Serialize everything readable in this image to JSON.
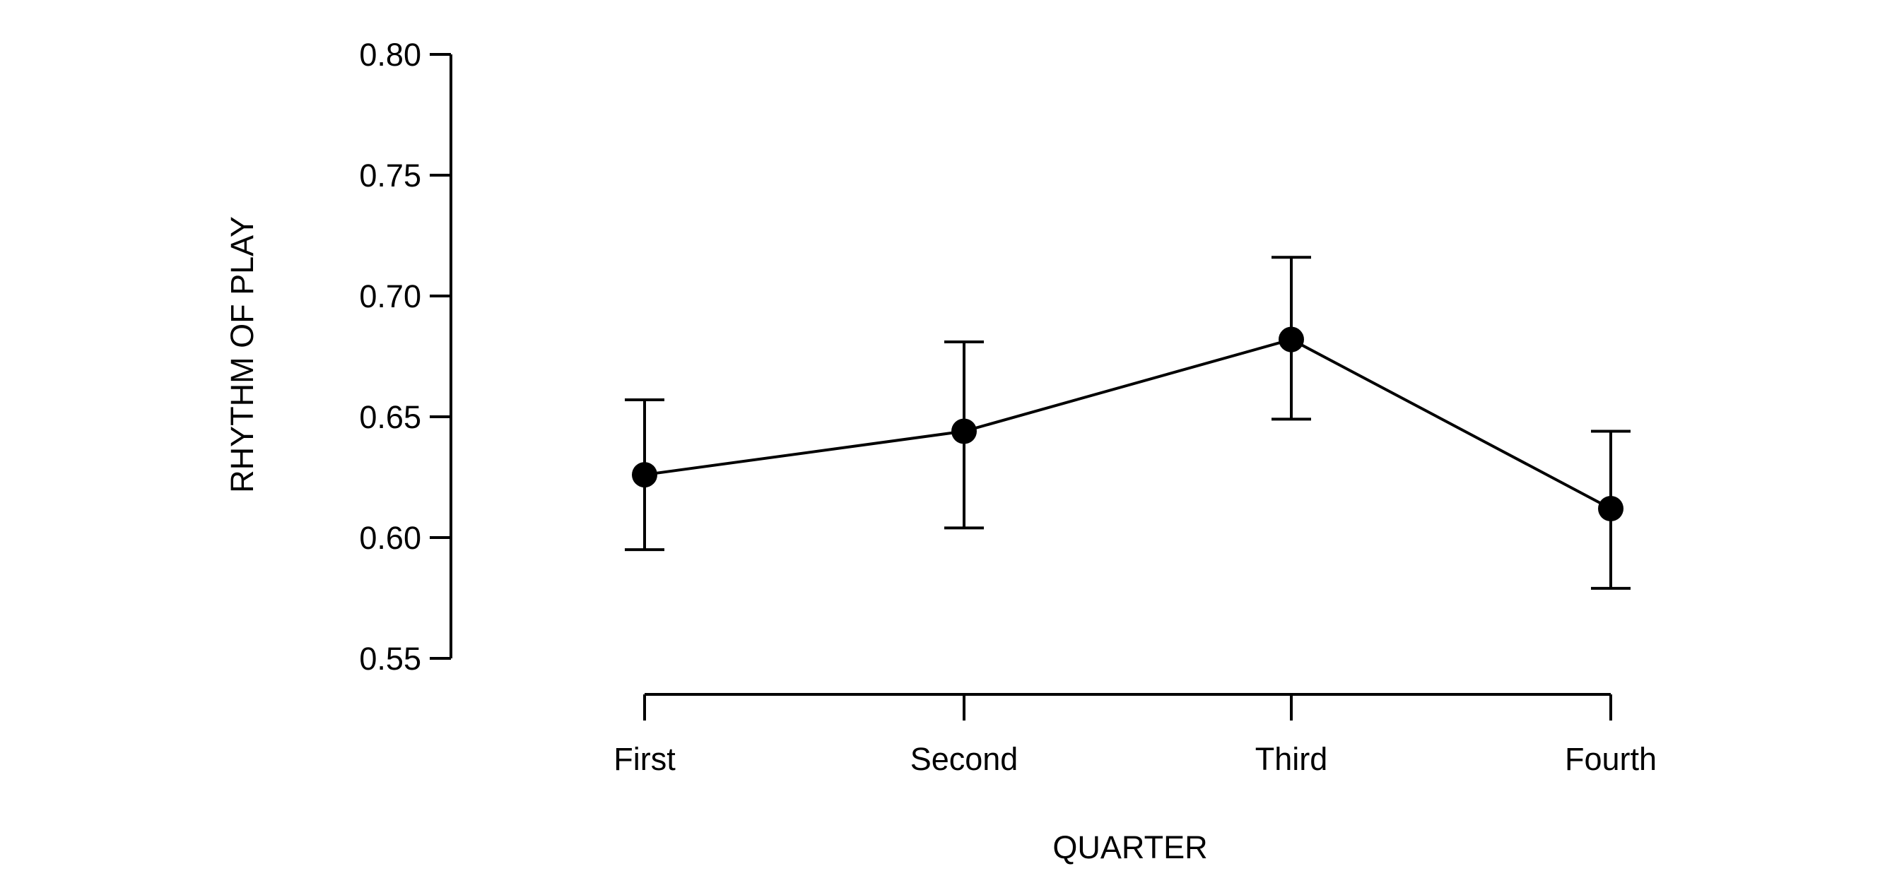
{
  "chart_data": {
    "type": "line",
    "title": "",
    "xlabel": "QUARTER",
    "ylabel": "RHYTHM OF PLAY",
    "categories": [
      "First",
      "Second",
      "Third",
      "Fourth"
    ],
    "series": [
      {
        "name": "Rhythm of play",
        "values": [
          0.626,
          0.644,
          0.682,
          0.612
        ],
        "error_low": [
          0.595,
          0.604,
          0.649,
          0.579
        ],
        "error_high": [
          0.657,
          0.681,
          0.716,
          0.644
        ]
      }
    ],
    "ylim": [
      0.55,
      0.8
    ],
    "yticks": [
      "0.55",
      "0.60",
      "0.65",
      "0.70",
      "0.75",
      "0.80"
    ],
    "grid": false,
    "color": "#000000"
  }
}
